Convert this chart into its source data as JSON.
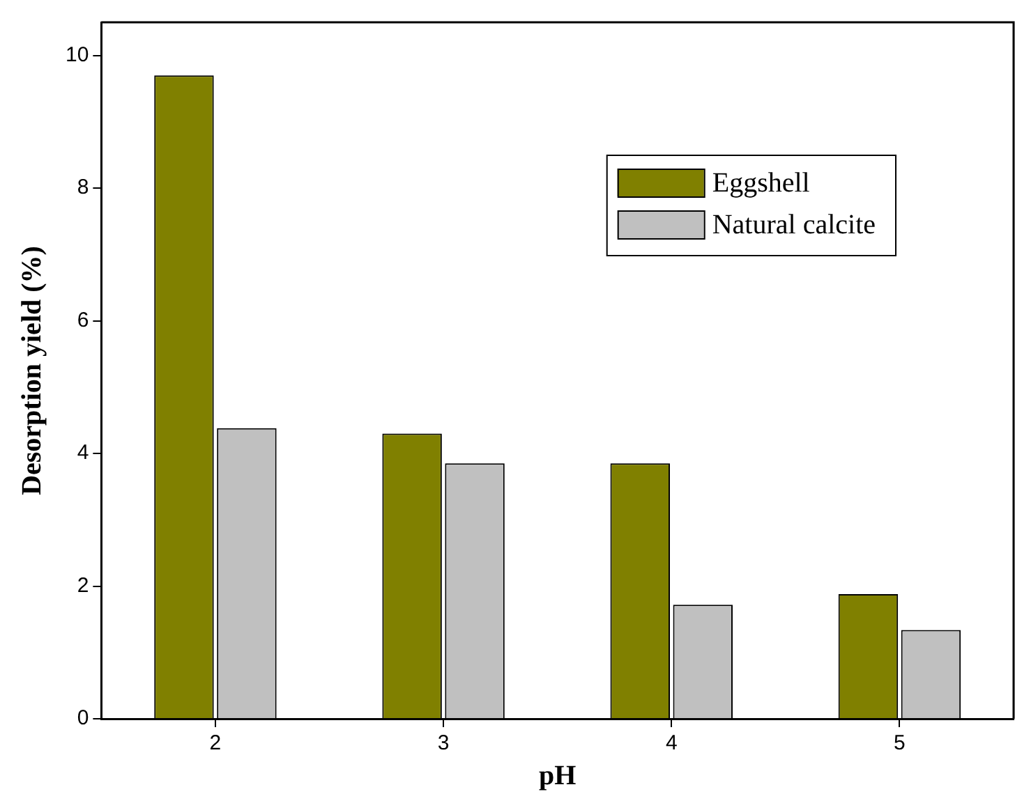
{
  "chart_data": {
    "type": "bar",
    "xlabel": "pH",
    "ylabel": "Desorption yield (%)",
    "categories": [
      "2",
      "3",
      "4",
      "5"
    ],
    "series": [
      {
        "name": "Eggshell",
        "color": "#808000",
        "values": [
          9.7,
          4.3,
          3.85,
          1.88
        ]
      },
      {
        "name": "Natural calcite",
        "color": "#c0c0c0",
        "values": [
          4.38,
          3.85,
          1.72,
          1.34
        ]
      }
    ],
    "ylim": [
      0,
      10.5
    ],
    "yticks": [
      0,
      2,
      4,
      6,
      8,
      10
    ],
    "grid": false,
    "legend": "top right"
  }
}
